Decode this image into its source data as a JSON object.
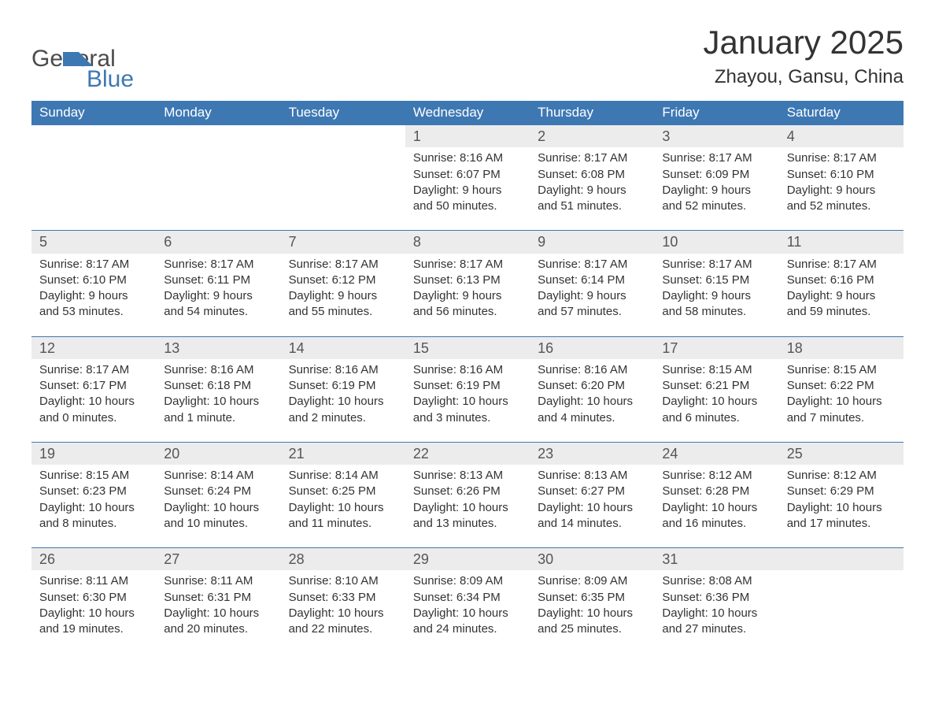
{
  "logo": {
    "word1": "General",
    "word2": "Blue"
  },
  "title": "January 2025",
  "location": "Zhayou, Gansu, China",
  "colors": {
    "header_bg": "#3e78b3",
    "header_text": "#ffffff",
    "daynum_bg": "#ececec",
    "daynum_text": "#555555",
    "body_text": "#333333",
    "rule": "#3e78b3",
    "page_bg": "#ffffff",
    "logo_gray": "#4b4b4b",
    "logo_blue": "#3e78b3"
  },
  "typography": {
    "title_fontsize": 42,
    "location_fontsize": 24,
    "header_fontsize": 17,
    "daynum_fontsize": 18,
    "body_fontsize": 15
  },
  "columns": [
    "Sunday",
    "Monday",
    "Tuesday",
    "Wednesday",
    "Thursday",
    "Friday",
    "Saturday"
  ],
  "weeks": [
    [
      null,
      null,
      null,
      {
        "n": "1",
        "sr": "Sunrise: 8:16 AM",
        "ss": "Sunset: 6:07 PM",
        "d1": "Daylight: 9 hours",
        "d2": "and 50 minutes."
      },
      {
        "n": "2",
        "sr": "Sunrise: 8:17 AM",
        "ss": "Sunset: 6:08 PM",
        "d1": "Daylight: 9 hours",
        "d2": "and 51 minutes."
      },
      {
        "n": "3",
        "sr": "Sunrise: 8:17 AM",
        "ss": "Sunset: 6:09 PM",
        "d1": "Daylight: 9 hours",
        "d2": "and 52 minutes."
      },
      {
        "n": "4",
        "sr": "Sunrise: 8:17 AM",
        "ss": "Sunset: 6:10 PM",
        "d1": "Daylight: 9 hours",
        "d2": "and 52 minutes."
      }
    ],
    [
      {
        "n": "5",
        "sr": "Sunrise: 8:17 AM",
        "ss": "Sunset: 6:10 PM",
        "d1": "Daylight: 9 hours",
        "d2": "and 53 minutes."
      },
      {
        "n": "6",
        "sr": "Sunrise: 8:17 AM",
        "ss": "Sunset: 6:11 PM",
        "d1": "Daylight: 9 hours",
        "d2": "and 54 minutes."
      },
      {
        "n": "7",
        "sr": "Sunrise: 8:17 AM",
        "ss": "Sunset: 6:12 PM",
        "d1": "Daylight: 9 hours",
        "d2": "and 55 minutes."
      },
      {
        "n": "8",
        "sr": "Sunrise: 8:17 AM",
        "ss": "Sunset: 6:13 PM",
        "d1": "Daylight: 9 hours",
        "d2": "and 56 minutes."
      },
      {
        "n": "9",
        "sr": "Sunrise: 8:17 AM",
        "ss": "Sunset: 6:14 PM",
        "d1": "Daylight: 9 hours",
        "d2": "and 57 minutes."
      },
      {
        "n": "10",
        "sr": "Sunrise: 8:17 AM",
        "ss": "Sunset: 6:15 PM",
        "d1": "Daylight: 9 hours",
        "d2": "and 58 minutes."
      },
      {
        "n": "11",
        "sr": "Sunrise: 8:17 AM",
        "ss": "Sunset: 6:16 PM",
        "d1": "Daylight: 9 hours",
        "d2": "and 59 minutes."
      }
    ],
    [
      {
        "n": "12",
        "sr": "Sunrise: 8:17 AM",
        "ss": "Sunset: 6:17 PM",
        "d1": "Daylight: 10 hours",
        "d2": "and 0 minutes."
      },
      {
        "n": "13",
        "sr": "Sunrise: 8:16 AM",
        "ss": "Sunset: 6:18 PM",
        "d1": "Daylight: 10 hours",
        "d2": "and 1 minute."
      },
      {
        "n": "14",
        "sr": "Sunrise: 8:16 AM",
        "ss": "Sunset: 6:19 PM",
        "d1": "Daylight: 10 hours",
        "d2": "and 2 minutes."
      },
      {
        "n": "15",
        "sr": "Sunrise: 8:16 AM",
        "ss": "Sunset: 6:19 PM",
        "d1": "Daylight: 10 hours",
        "d2": "and 3 minutes."
      },
      {
        "n": "16",
        "sr": "Sunrise: 8:16 AM",
        "ss": "Sunset: 6:20 PM",
        "d1": "Daylight: 10 hours",
        "d2": "and 4 minutes."
      },
      {
        "n": "17",
        "sr": "Sunrise: 8:15 AM",
        "ss": "Sunset: 6:21 PM",
        "d1": "Daylight: 10 hours",
        "d2": "and 6 minutes."
      },
      {
        "n": "18",
        "sr": "Sunrise: 8:15 AM",
        "ss": "Sunset: 6:22 PM",
        "d1": "Daylight: 10 hours",
        "d2": "and 7 minutes."
      }
    ],
    [
      {
        "n": "19",
        "sr": "Sunrise: 8:15 AM",
        "ss": "Sunset: 6:23 PM",
        "d1": "Daylight: 10 hours",
        "d2": "and 8 minutes."
      },
      {
        "n": "20",
        "sr": "Sunrise: 8:14 AM",
        "ss": "Sunset: 6:24 PM",
        "d1": "Daylight: 10 hours",
        "d2": "and 10 minutes."
      },
      {
        "n": "21",
        "sr": "Sunrise: 8:14 AM",
        "ss": "Sunset: 6:25 PM",
        "d1": "Daylight: 10 hours",
        "d2": "and 11 minutes."
      },
      {
        "n": "22",
        "sr": "Sunrise: 8:13 AM",
        "ss": "Sunset: 6:26 PM",
        "d1": "Daylight: 10 hours",
        "d2": "and 13 minutes."
      },
      {
        "n": "23",
        "sr": "Sunrise: 8:13 AM",
        "ss": "Sunset: 6:27 PM",
        "d1": "Daylight: 10 hours",
        "d2": "and 14 minutes."
      },
      {
        "n": "24",
        "sr": "Sunrise: 8:12 AM",
        "ss": "Sunset: 6:28 PM",
        "d1": "Daylight: 10 hours",
        "d2": "and 16 minutes."
      },
      {
        "n": "25",
        "sr": "Sunrise: 8:12 AM",
        "ss": "Sunset: 6:29 PM",
        "d1": "Daylight: 10 hours",
        "d2": "and 17 minutes."
      }
    ],
    [
      {
        "n": "26",
        "sr": "Sunrise: 8:11 AM",
        "ss": "Sunset: 6:30 PM",
        "d1": "Daylight: 10 hours",
        "d2": "and 19 minutes."
      },
      {
        "n": "27",
        "sr": "Sunrise: 8:11 AM",
        "ss": "Sunset: 6:31 PM",
        "d1": "Daylight: 10 hours",
        "d2": "and 20 minutes."
      },
      {
        "n": "28",
        "sr": "Sunrise: 8:10 AM",
        "ss": "Sunset: 6:33 PM",
        "d1": "Daylight: 10 hours",
        "d2": "and 22 minutes."
      },
      {
        "n": "29",
        "sr": "Sunrise: 8:09 AM",
        "ss": "Sunset: 6:34 PM",
        "d1": "Daylight: 10 hours",
        "d2": "and 24 minutes."
      },
      {
        "n": "30",
        "sr": "Sunrise: 8:09 AM",
        "ss": "Sunset: 6:35 PM",
        "d1": "Daylight: 10 hours",
        "d2": "and 25 minutes."
      },
      {
        "n": "31",
        "sr": "Sunrise: 8:08 AM",
        "ss": "Sunset: 6:36 PM",
        "d1": "Daylight: 10 hours",
        "d2": "and 27 minutes."
      },
      null
    ]
  ]
}
